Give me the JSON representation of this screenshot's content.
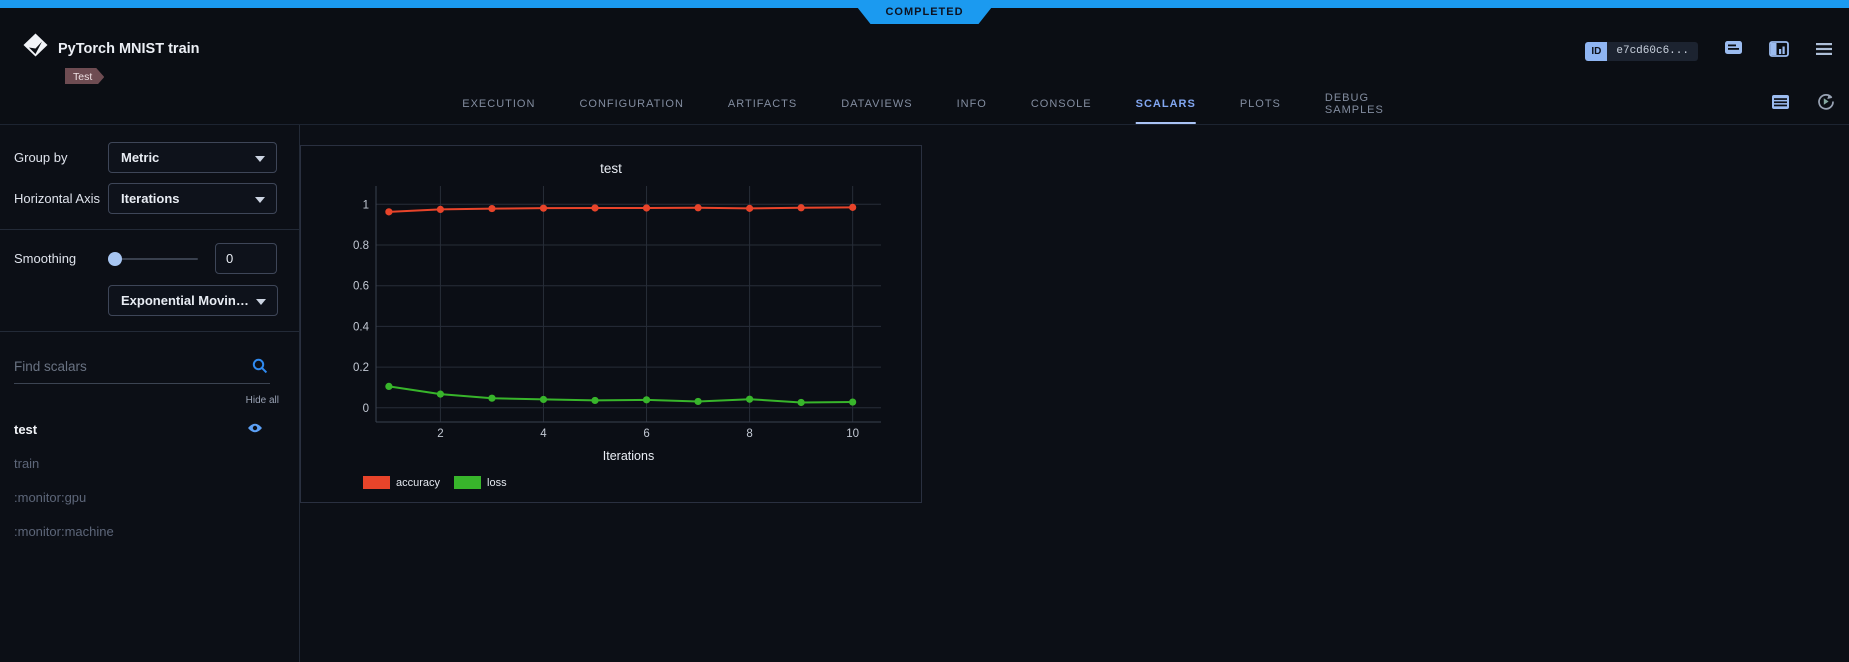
{
  "status_banner": {
    "label": "COMPLETED",
    "color": "#1b9af0"
  },
  "header": {
    "title": "PyTorch MNIST train",
    "tag": "Test",
    "id_badge": {
      "label": "ID",
      "value": "e7cd60c6..."
    },
    "action_icons": [
      "comments-icon",
      "details-panel-icon",
      "menu-icon"
    ]
  },
  "tab_bar": {
    "tabs": [
      "EXECUTION",
      "CONFIGURATION",
      "ARTIFACTS",
      "DATAVIEWS",
      "INFO",
      "CONSOLE",
      "SCALARS",
      "PLOTS",
      "DEBUG SAMPLES"
    ],
    "active_tab": "SCALARS",
    "action_icons": [
      "table-view-icon",
      "auto-refresh-icon"
    ]
  },
  "sidebar": {
    "group_by_label": "Group by",
    "group_by_value": "Metric",
    "horizontal_axis_label": "Horizontal Axis",
    "horizontal_axis_value": "Iterations",
    "smoothing_label": "Smoothing",
    "smoothing_value": "0",
    "smoothing_algorithm": "Exponential Moving Av...",
    "search_placeholder": "Find scalars",
    "hide_all_label": "Hide all",
    "scalars": [
      {
        "name": "test",
        "selected": true,
        "eye_icon": true
      },
      {
        "name": "train",
        "selected": false,
        "eye_icon": false
      },
      {
        "name": ":monitor:gpu",
        "selected": false,
        "eye_icon": false
      },
      {
        "name": ":monitor:machine",
        "selected": false,
        "eye_icon": false
      }
    ]
  },
  "chart_data": {
    "type": "line",
    "title": "test",
    "xlabel": "Iterations",
    "x": [
      1,
      2,
      3,
      4,
      5,
      6,
      7,
      8,
      9,
      10
    ],
    "series": [
      {
        "name": "accuracy",
        "color": "#e8442a",
        "values": [
          0.963,
          0.975,
          0.979,
          0.981,
          0.982,
          0.982,
          0.983,
          0.98,
          0.983,
          0.985
        ]
      },
      {
        "name": "loss",
        "color": "#38b52b",
        "values": [
          0.105,
          0.067,
          0.047,
          0.041,
          0.036,
          0.039,
          0.031,
          0.042,
          0.026,
          0.028
        ]
      }
    ],
    "xticks": [
      2,
      4,
      6,
      8,
      10
    ],
    "yticks": [
      0,
      0.2,
      0.4,
      0.6,
      0.8,
      1
    ],
    "xlim": [
      0.75,
      10.55
    ],
    "ylim": [
      -0.07,
      1.09
    ],
    "grid": true,
    "legend_position": "bottom-left"
  }
}
